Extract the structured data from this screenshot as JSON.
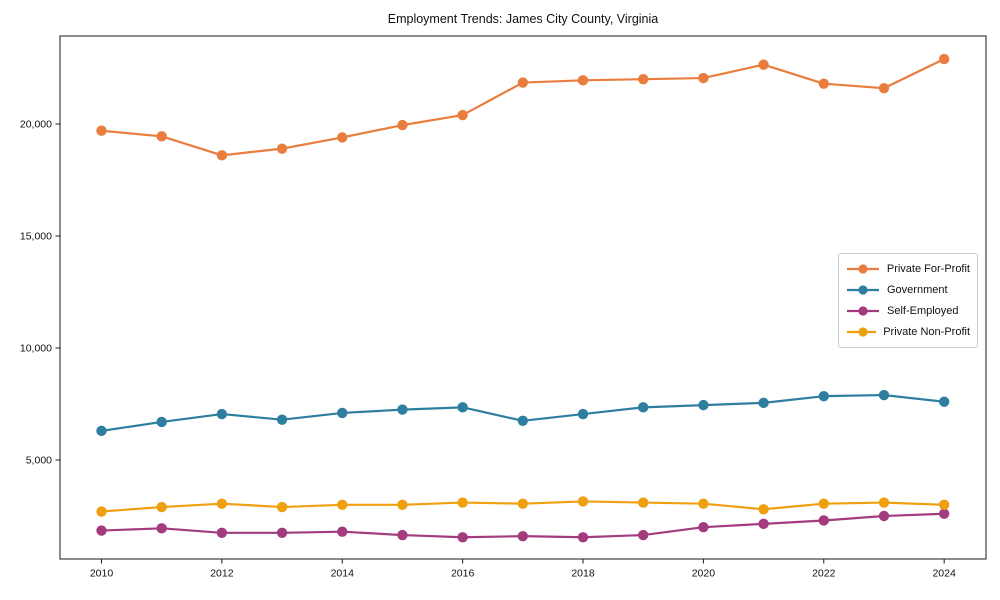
{
  "chart_data": {
    "type": "line",
    "title": "Employment Trends: James City County, Virginia",
    "x": [
      2010,
      2011,
      2012,
      2013,
      2014,
      2015,
      2016,
      2017,
      2018,
      2019,
      2020,
      2021,
      2022,
      2023,
      2024
    ],
    "xticks": [
      2010,
      2012,
      2014,
      2016,
      2018,
      2020,
      2022,
      2024
    ],
    "yticks": [
      5000,
      10000,
      15000,
      20000
    ],
    "ytick_labels": [
      "5,000",
      "10,000",
      "15,000",
      "20,000"
    ],
    "ylim": [
      500,
      24000
    ],
    "grid": false,
    "legend_position": "center-right",
    "series": [
      {
        "name": "Private For-Profit",
        "color": "#e87d3e",
        "values": [
          19700,
          19450,
          18600,
          18900,
          19400,
          19950,
          20400,
          21850,
          21950,
          22000,
          22050,
          22650,
          21800,
          21600,
          22900
        ]
      },
      {
        "name": "Government",
        "color": "#2e7e9f",
        "values": [
          6300,
          6700,
          7050,
          6800,
          7100,
          7250,
          7350,
          6750,
          7050,
          7350,
          7450,
          7550,
          7850,
          7900,
          7600
        ]
      },
      {
        "name": "Self-Employed",
        "color": "#a23c7e",
        "values": [
          1850,
          1950,
          1750,
          1750,
          1800,
          1650,
          1550,
          1600,
          1550,
          1650,
          2000,
          2150,
          2300,
          2500,
          2600
        ]
      },
      {
        "name": "Private Non-Profit",
        "color": "#efa011",
        "values": [
          2700,
          2900,
          3050,
          2900,
          3000,
          3000,
          3100,
          3050,
          3150,
          3100,
          3050,
          2800,
          3050,
          3100,
          3000
        ]
      }
    ]
  }
}
